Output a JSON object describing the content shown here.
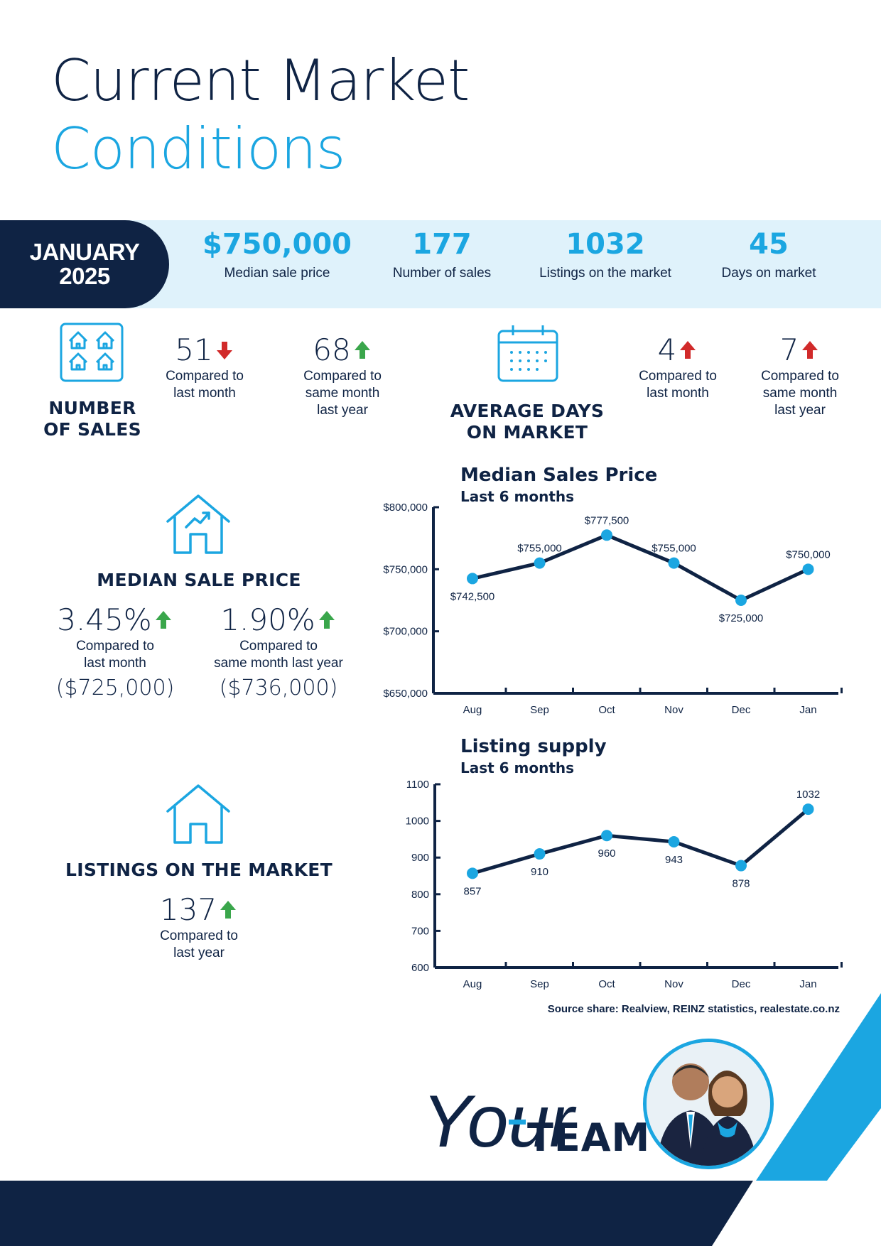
{
  "header": {
    "title_line1": "Current Market",
    "title_line2": "Conditions"
  },
  "summary": {
    "month_line1": "JANUARY",
    "month_line2": "2025",
    "stats": [
      {
        "value": "$750,000",
        "label": "Median sale price"
      },
      {
        "value": "177",
        "label": "Number of sales"
      },
      {
        "value": "1032",
        "label": "Listings on the market"
      },
      {
        "value": "45",
        "label": "Days on market"
      }
    ]
  },
  "number_of_sales": {
    "label_line1": "NUMBER",
    "label_line2": "OF SALES",
    "icon": "houses-grid-icon",
    "month_change": {
      "value": "51",
      "direction": "down",
      "line1": "Compared to",
      "line2": "last month"
    },
    "year_change": {
      "value": "68",
      "direction": "up",
      "line1": "Compared to",
      "line2": "same month",
      "line3": "last year"
    }
  },
  "days_on_market": {
    "label_line1": "AVERAGE DAYS",
    "label_line2": "ON MARKET",
    "icon": "calendar-icon",
    "month_change": {
      "value": "4",
      "direction": "up",
      "line1": "Compared to",
      "line2": "last month"
    },
    "year_change": {
      "value": "7",
      "direction": "up",
      "line1": "Compared to",
      "line2": "same month",
      "line3": "last year"
    }
  },
  "median_sale_price": {
    "label": "MEDIAN SALE PRICE",
    "icon": "house-trend-icon",
    "month_change": {
      "value": "3.45%",
      "direction": "up",
      "line1": "Compared to",
      "line2": "last month",
      "previous": "($725,000)"
    },
    "year_change": {
      "value": "1.90%",
      "direction": "up",
      "line1": "Compared to",
      "line2": "same month last year",
      "previous": "($736,000)"
    }
  },
  "listings": {
    "label": "LISTINGS ON THE MARKET",
    "icon": "house-icon",
    "year_change": {
      "value": "137",
      "direction": "up",
      "line1": "Compared to",
      "line2": "last year"
    }
  },
  "colors": {
    "navy": "#0f2344",
    "accent_blue": "#1ba6e1",
    "light_band": "#dff2fb",
    "arrow_up": "#3aa64b",
    "arrow_down": "#d12a2a"
  },
  "chart_data": [
    {
      "type": "line",
      "title": "Median Sales Price",
      "subtitle": "Last 6 months",
      "categories": [
        "Aug",
        "Sep",
        "Oct",
        "Nov",
        "Dec",
        "Jan"
      ],
      "values": [
        742500,
        755000,
        777500,
        755000,
        725000,
        750000
      ],
      "data_labels": [
        "$742,500",
        "$755,000",
        "$777,500",
        "$755,000",
        "$725,000",
        "$750,000"
      ],
      "label_positions": [
        "below",
        "above",
        "above",
        "above",
        "below",
        "above"
      ],
      "yticks": [
        650000,
        700000,
        750000,
        800000
      ],
      "ytick_labels": [
        "$650,000",
        "$700,000",
        "$750,000",
        "$800,000"
      ],
      "ylim": [
        650000,
        800000
      ],
      "grid": false
    },
    {
      "type": "line",
      "title": "Listing supply",
      "subtitle": "Last 6 months",
      "categories": [
        "Aug",
        "Sep",
        "Oct",
        "Nov",
        "Dec",
        "Jan"
      ],
      "values": [
        857,
        910,
        960,
        943,
        878,
        1032
      ],
      "data_labels": [
        "857",
        "910",
        "960",
        "943",
        "878",
        "1032"
      ],
      "label_positions": [
        "below",
        "below",
        "below",
        "below",
        "below",
        "above"
      ],
      "yticks": [
        600,
        700,
        800,
        900,
        1000,
        1100
      ],
      "ytick_labels": [
        "600",
        "700",
        "800",
        "900",
        "1000",
        "1100"
      ],
      "ylim": [
        600,
        1100
      ],
      "grid": false
    }
  ],
  "footer": {
    "source": "Source share: Realview, REINZ statistics, realestate.co.nz",
    "signature": "Your",
    "team": "TEAM"
  }
}
